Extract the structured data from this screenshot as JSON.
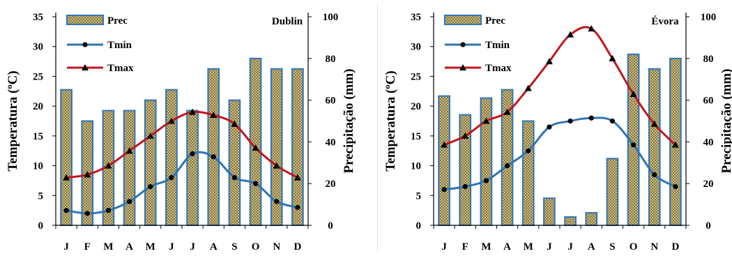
{
  "colors": {
    "bar_fill": "#d9c98c",
    "bar_stroke": "#2e75b6",
    "tmin": "#2e75b6",
    "tmax": "#c0161d",
    "axis": "#000000"
  },
  "chart_data": [
    {
      "type": "bar+line",
      "title": "Dublin",
      "categories": [
        "J",
        "F",
        "M",
        "A",
        "M",
        "J",
        "J",
        "A",
        "S",
        "O",
        "N",
        "D"
      ],
      "ylabel": "Temperatura (ºC)",
      "y2label": "Precipitação (mm)",
      "ylim": [
        0,
        35
      ],
      "y2lim": [
        0,
        100
      ],
      "yticks": [
        0,
        5,
        10,
        15,
        20,
        25,
        30,
        35
      ],
      "y2ticks": [
        0,
        20,
        40,
        60,
        80,
        100
      ],
      "legend": [
        "Prec",
        "Tmin",
        "Tmax"
      ],
      "legend_position": "top-left",
      "grid": false,
      "series": [
        {
          "name": "Prec",
          "kind": "bar",
          "axis": "right",
          "values": [
            65,
            50,
            55,
            55,
            60,
            65,
            55,
            75,
            60,
            80,
            75,
            75
          ]
        },
        {
          "name": "Tmin",
          "kind": "line",
          "marker": "circle",
          "axis": "left",
          "values": [
            2.5,
            2.0,
            2.5,
            4.0,
            6.5,
            8.0,
            12.0,
            11.5,
            8.0,
            7.0,
            4.0,
            3.0
          ]
        },
        {
          "name": "Tmax",
          "kind": "line",
          "marker": "triangle",
          "axis": "left",
          "values": [
            8.0,
            8.5,
            10.0,
            12.5,
            15.0,
            17.5,
            19.0,
            18.5,
            17.0,
            13.0,
            10.0,
            8.0
          ]
        }
      ]
    },
    {
      "type": "bar+line",
      "title": "Évora",
      "categories": [
        "J",
        "F",
        "M",
        "A",
        "M",
        "J",
        "J",
        "A",
        "S",
        "O",
        "N",
        "D"
      ],
      "ylabel": "Temperatura (ºC)",
      "y2label": "Precipitação (mm)",
      "ylim": [
        0,
        35
      ],
      "y2lim": [
        0,
        100
      ],
      "yticks": [
        0,
        5,
        10,
        15,
        20,
        25,
        30,
        35
      ],
      "y2ticks": [
        0,
        20,
        40,
        60,
        80,
        100
      ],
      "legend": [
        "Prec",
        "Tmin",
        "Tmax"
      ],
      "legend_position": "top-left",
      "grid": false,
      "series": [
        {
          "name": "Prec",
          "kind": "bar",
          "axis": "right",
          "values": [
            62,
            53,
            61,
            65,
            50,
            13,
            4,
            6,
            32,
            82,
            75,
            80
          ]
        },
        {
          "name": "Tmin",
          "kind": "line",
          "marker": "circle",
          "axis": "left",
          "values": [
            6.0,
            6.5,
            7.5,
            10.0,
            12.5,
            16.5,
            17.5,
            18.0,
            17.5,
            13.5,
            8.5,
            6.5
          ]
        },
        {
          "name": "Tmax",
          "kind": "line",
          "marker": "triangle",
          "axis": "left",
          "values": [
            13.5,
            15.0,
            17.5,
            19.0,
            23.0,
            27.5,
            32.0,
            33.0,
            28.0,
            22.0,
            17.0,
            13.5
          ]
        }
      ]
    }
  ]
}
